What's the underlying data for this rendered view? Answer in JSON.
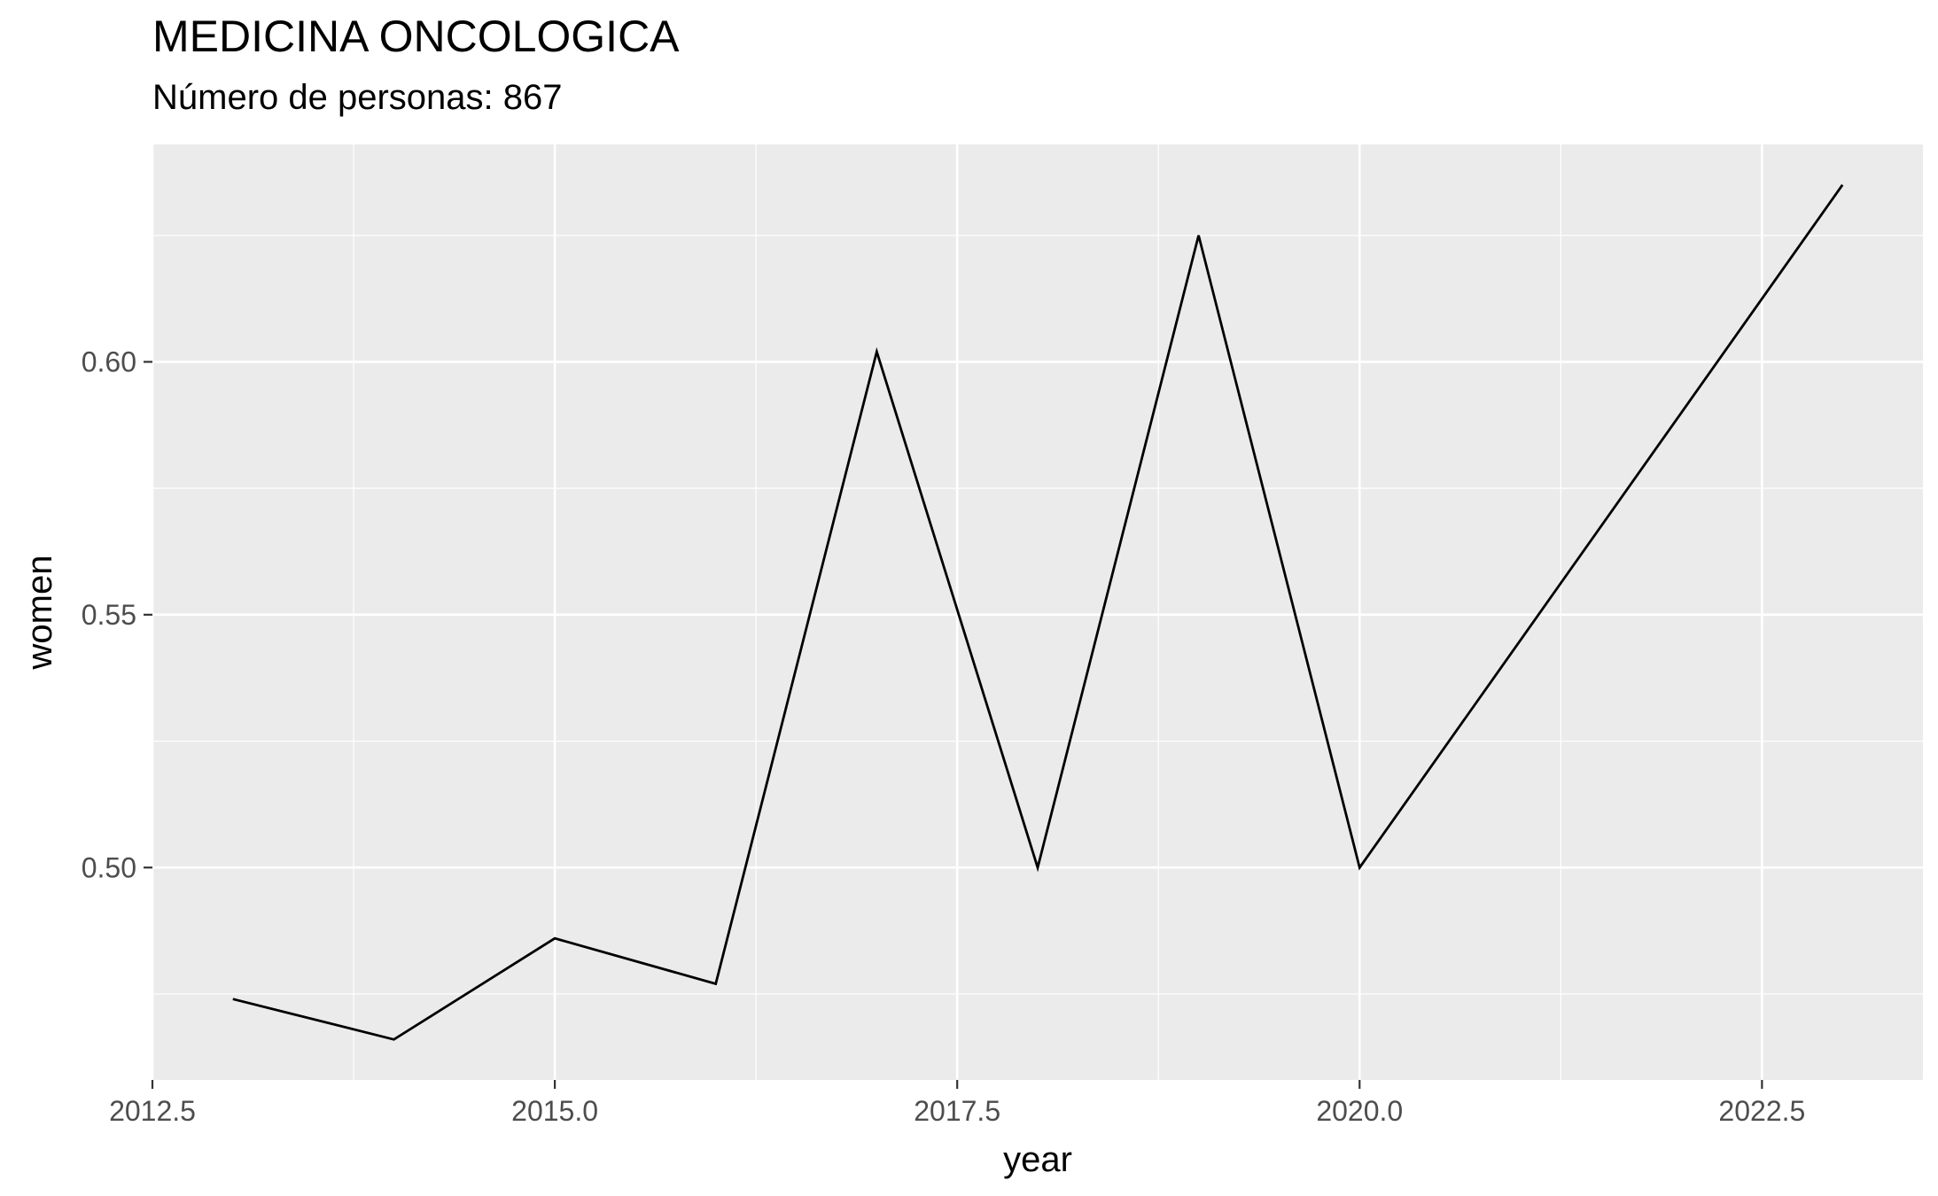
{
  "chart_data": {
    "type": "line",
    "title": "MEDICINA ONCOLOGICA",
    "subtitle": "Número de personas: 867",
    "xlabel": "year",
    "ylabel": "women",
    "xlim": [
      2012.5,
      2023.5
    ],
    "ylim": [
      0.458,
      0.643
    ],
    "x_ticks": [
      2012.5,
      2015.0,
      2017.5,
      2020.0,
      2022.5
    ],
    "x_tick_labels": [
      "2012.5",
      "2015.0",
      "2017.5",
      "2020.0",
      "2022.5"
    ],
    "y_ticks": [
      0.5,
      0.55,
      0.6
    ],
    "y_tick_labels": [
      "0.50",
      "0.55",
      "0.60"
    ],
    "grid": true,
    "background": "#ebebeb",
    "grid_color": "#ffffff",
    "line_color": "#000000",
    "series": [
      {
        "x": [
          2013,
          2014,
          2015,
          2016,
          2017,
          2018,
          2019,
          2020,
          2023
        ],
        "y": [
          0.474,
          0.466,
          0.486,
          0.477,
          0.602,
          0.5,
          0.625,
          0.5,
          0.635
        ]
      }
    ]
  }
}
